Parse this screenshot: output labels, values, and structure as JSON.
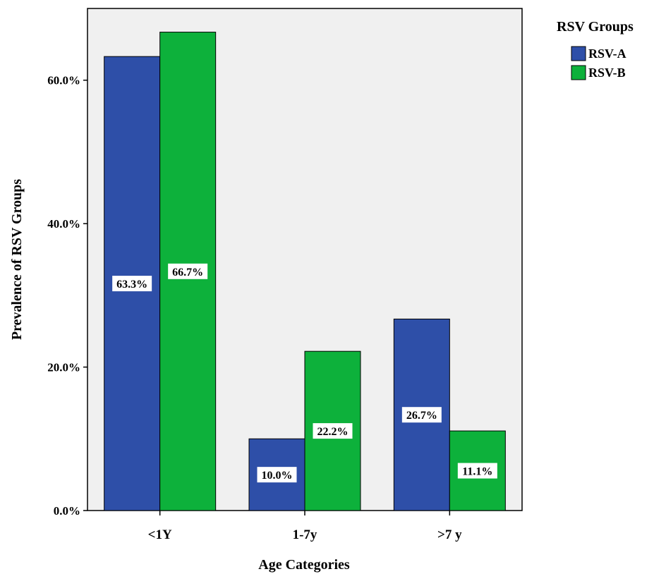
{
  "chart_data": {
    "type": "bar",
    "title": "",
    "xlabel": "Age Categories",
    "ylabel": "Prevalence of RSV Groups",
    "categories": [
      "<1Y",
      "1-7y",
      ">7 y"
    ],
    "series": [
      {
        "name": "RSV-A",
        "values": [
          63.3,
          10.0,
          26.7
        ],
        "labels": [
          "63.3%",
          "10.0%",
          "26.7%"
        ],
        "color": "#2e4fa8"
      },
      {
        "name": "RSV-B",
        "values": [
          66.7,
          22.2,
          11.1
        ],
        "labels": [
          "66.7%",
          "22.2%",
          "11.1%"
        ],
        "color": "#0db13b"
      }
    ],
    "ylim": [
      0,
      70
    ],
    "yticks": [
      0,
      20,
      40,
      60
    ],
    "ytick_labels": [
      "0.0%",
      "20.0%",
      "40.0%",
      "60.0%"
    ],
    "legend": {
      "title": "RSV Groups",
      "position": "top-right"
    },
    "grid": false,
    "plot_background": "#f0f0f0"
  }
}
